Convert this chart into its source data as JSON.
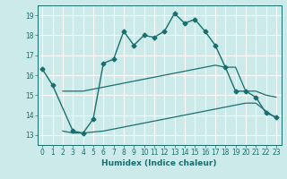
{
  "title": "",
  "xlabel": "Humidex (Indice chaleur)",
  "bg_color": "#cceaea",
  "line_color": "#1a6e6e",
  "grid_color": "#b0d8d8",
  "xlim": [
    -0.5,
    23.5
  ],
  "ylim": [
    12.5,
    19.5
  ],
  "yticks": [
    13,
    14,
    15,
    16,
    17,
    18,
    19
  ],
  "xticks": [
    0,
    1,
    2,
    3,
    4,
    5,
    6,
    7,
    8,
    9,
    10,
    11,
    12,
    13,
    14,
    15,
    16,
    17,
    18,
    19,
    20,
    21,
    22,
    23
  ],
  "main_line": {
    "x": [
      0,
      1,
      3,
      4,
      5,
      6,
      7,
      8,
      9,
      10,
      11,
      12,
      13,
      14,
      15,
      16,
      17,
      18,
      19,
      20,
      21,
      22,
      23
    ],
    "y": [
      16.3,
      15.5,
      13.2,
      13.1,
      13.8,
      16.6,
      16.8,
      18.2,
      17.5,
      18.0,
      17.9,
      18.2,
      19.1,
      18.6,
      18.8,
      18.2,
      17.5,
      16.4,
      15.2,
      15.2,
      14.9,
      14.1,
      13.9
    ]
  },
  "upper_line": {
    "x": [
      2,
      3,
      4,
      5,
      6,
      7,
      8,
      9,
      10,
      11,
      12,
      13,
      14,
      15,
      16,
      17,
      18,
      19,
      20,
      21,
      22,
      23
    ],
    "y": [
      15.2,
      15.2,
      15.2,
      15.3,
      15.4,
      15.5,
      15.6,
      15.7,
      15.8,
      15.9,
      16.0,
      16.1,
      16.2,
      16.3,
      16.4,
      16.5,
      16.4,
      16.4,
      15.2,
      15.2,
      15.0,
      14.9
    ]
  },
  "lower_line": {
    "x": [
      2,
      3,
      4,
      5,
      6,
      7,
      8,
      9,
      10,
      11,
      12,
      13,
      14,
      15,
      16,
      17,
      18,
      19,
      20,
      21,
      22,
      23
    ],
    "y": [
      13.2,
      13.1,
      13.1,
      13.15,
      13.2,
      13.3,
      13.4,
      13.5,
      13.6,
      13.7,
      13.8,
      13.9,
      14.0,
      14.1,
      14.2,
      14.3,
      14.4,
      14.5,
      14.6,
      14.6,
      14.2,
      13.85
    ]
  }
}
